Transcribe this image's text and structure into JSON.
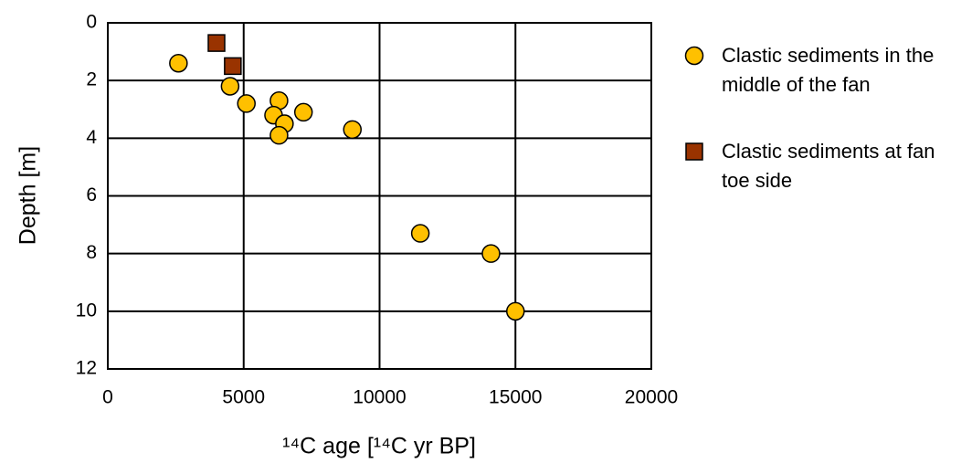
{
  "chart_data": {
    "type": "scatter",
    "x_label": "¹⁴C age [¹⁴C yr BP]",
    "y_label": "Depth [m]",
    "xlim": [
      0,
      20000
    ],
    "xticks": [
      0,
      5000,
      10000,
      15000,
      20000
    ],
    "ylim": [
      0,
      12
    ],
    "yticks": [
      0,
      2,
      4,
      6,
      8,
      10,
      12
    ],
    "y_inverted": true,
    "grid": true,
    "series": [
      {
        "name": "Clastic sediments in the middle of the fan",
        "marker": "circle",
        "color": "#FFC000",
        "x": [
          2600,
          4500,
          5100,
          6300,
          6100,
          6500,
          7200,
          6300,
          9000,
          11500,
          14100,
          15000
        ],
        "values": [
          1.4,
          2.2,
          2.8,
          2.7,
          3.2,
          3.5,
          3.1,
          3.9,
          3.7,
          7.3,
          8.0,
          10.0
        ]
      },
      {
        "name": "Clastic sediments at fan toe side",
        "marker": "square",
        "color": "#993300",
        "x": [
          4000,
          4600
        ],
        "values": [
          0.7,
          1.5
        ]
      }
    ]
  }
}
